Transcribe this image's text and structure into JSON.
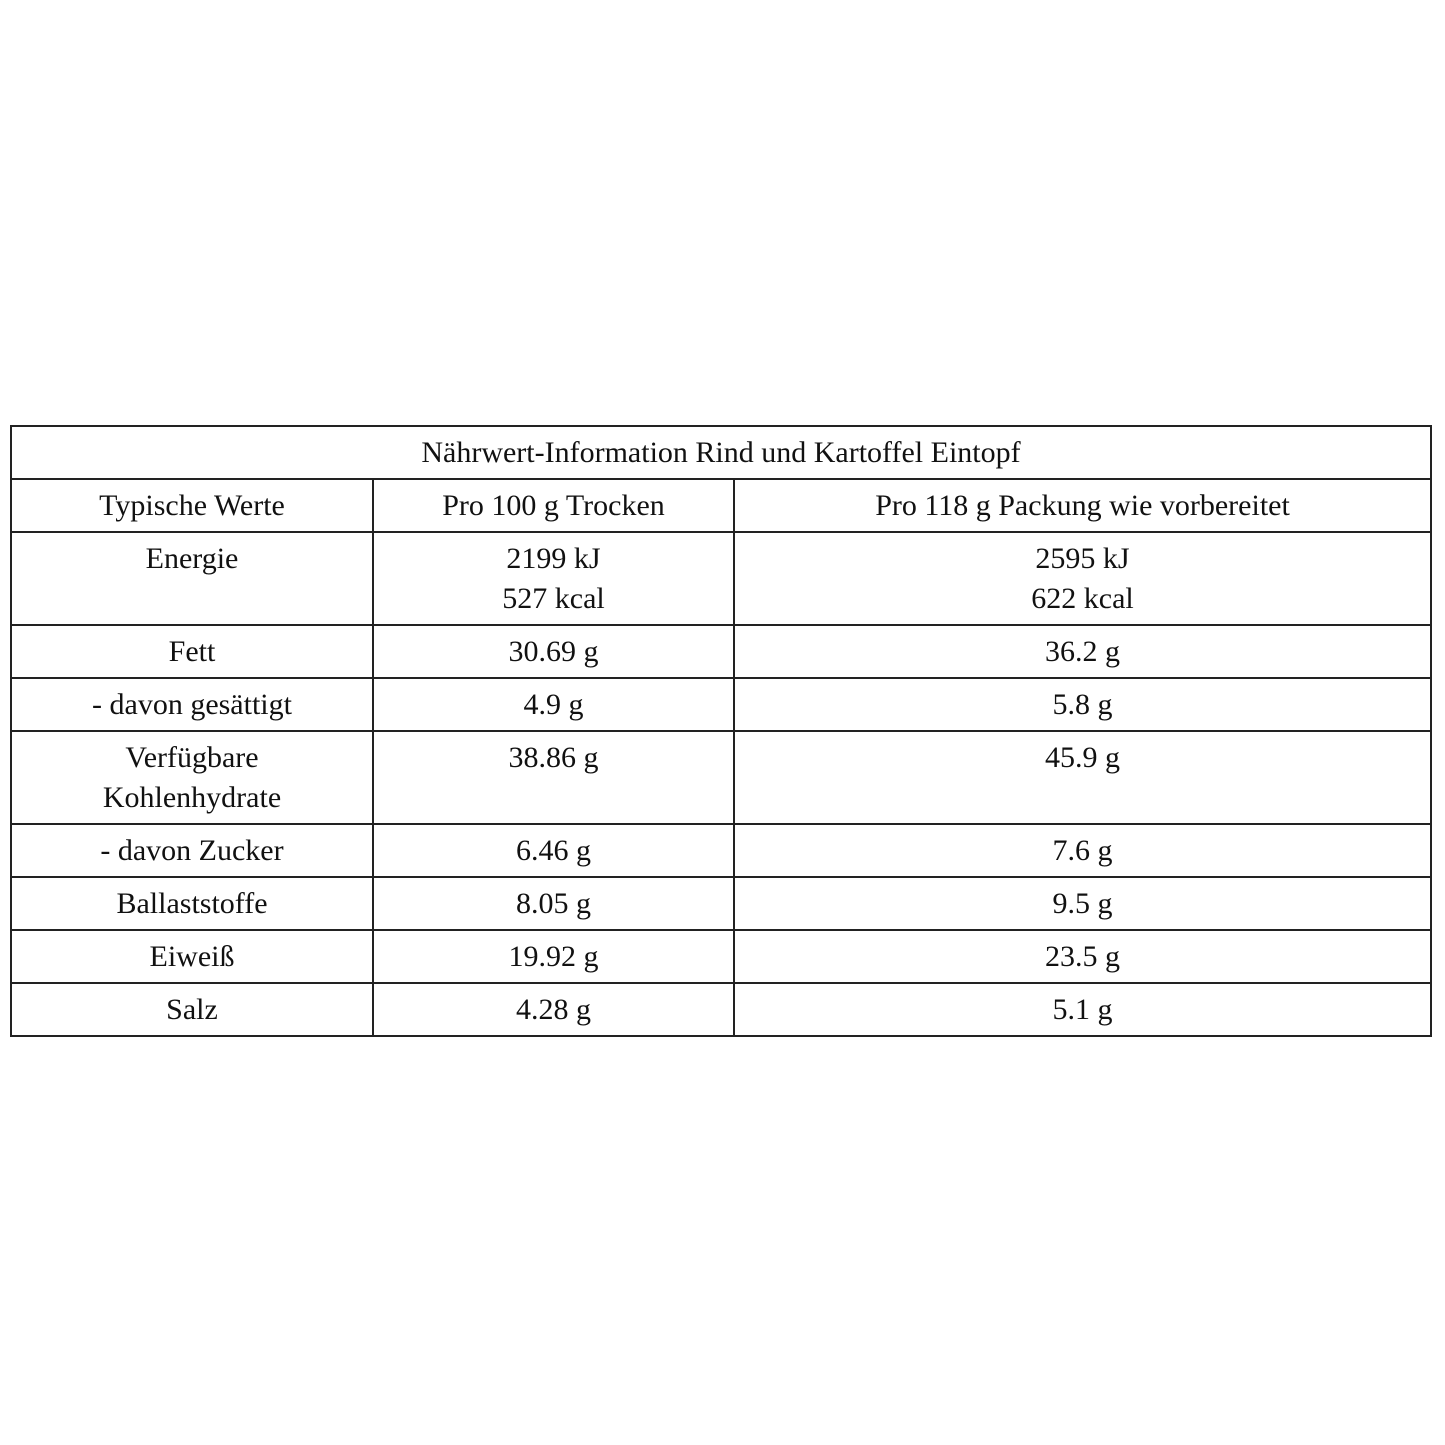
{
  "table": {
    "title": "Nährwert-Information Rind und Kartoffel Eintopf",
    "headers": [
      "Typische Werte",
      "Pro 100 g Trocken",
      "Pro 118 g Packung wie vorbereitet"
    ],
    "rows": [
      {
        "label": [
          "Energie"
        ],
        "per100": [
          "2199 kJ",
          "527 kcal"
        ],
        "perPack": [
          "2595 kJ",
          "622 kcal"
        ]
      },
      {
        "label": [
          "Fett"
        ],
        "per100": [
          "30.69 g"
        ],
        "perPack": [
          "36.2 g"
        ]
      },
      {
        "label": [
          "- davon gesättigt"
        ],
        "per100": [
          "4.9 g"
        ],
        "perPack": [
          "5.8 g"
        ]
      },
      {
        "label": [
          "Verfügbare",
          "Kohlenhydrate"
        ],
        "per100": [
          "38.86 g"
        ],
        "perPack": [
          "45.9 g"
        ]
      },
      {
        "label": [
          "- davon Zucker"
        ],
        "per100": [
          "6.46 g"
        ],
        "perPack": [
          "7.6 g"
        ]
      },
      {
        "label": [
          "Ballaststoffe"
        ],
        "per100": [
          "8.05 g"
        ],
        "perPack": [
          "9.5 g"
        ]
      },
      {
        "label": [
          "Eiweiß"
        ],
        "per100": [
          "19.92 g"
        ],
        "perPack": [
          "23.5 g"
        ]
      },
      {
        "label": [
          "Salz"
        ],
        "per100": [
          "4.28 g"
        ],
        "perPack": [
          "5.1 g"
        ]
      }
    ]
  }
}
